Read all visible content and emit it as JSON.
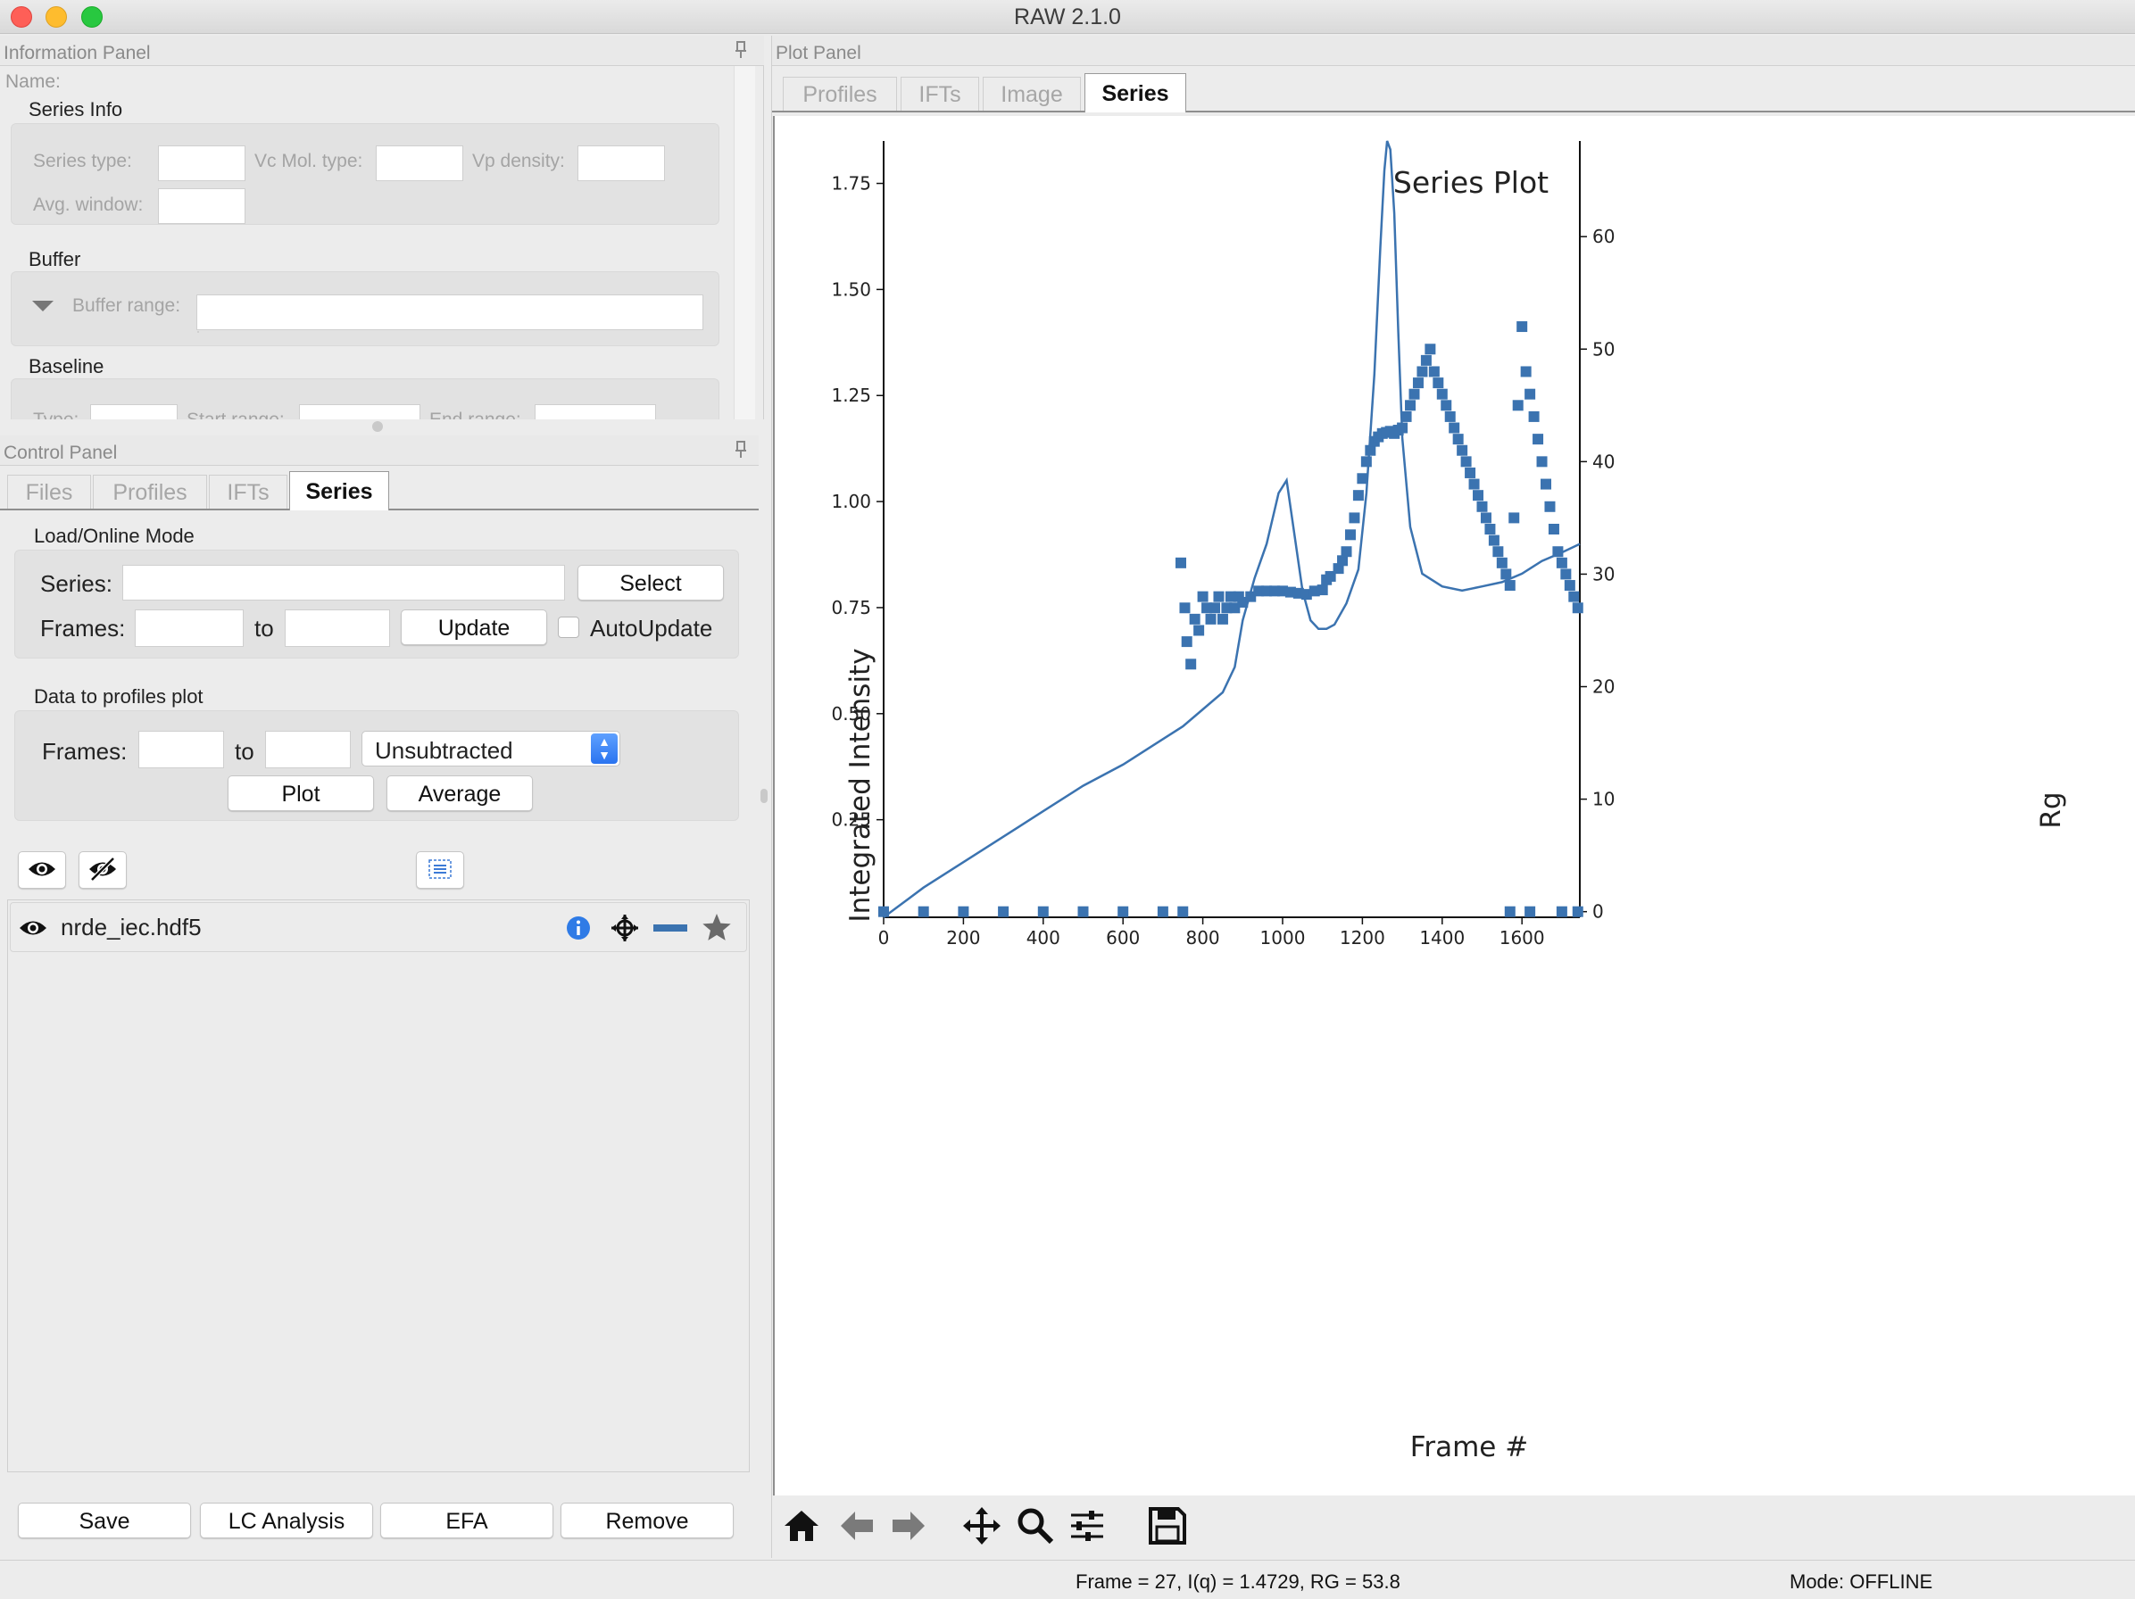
{
  "window": {
    "title": "RAW 2.1.0"
  },
  "info_panel": {
    "header": "Information Panel",
    "name_label": "Name:",
    "series_info": {
      "title": "Series Info",
      "series_type_label": "Series type:",
      "vc_mol_type_label": "Vc Mol. type:",
      "vp_density_label": "Vp density:",
      "avg_window_label": "Avg. window:"
    },
    "buffer": {
      "title": "Buffer",
      "range_label": "Buffer range:"
    },
    "baseline": {
      "title": "Baseline",
      "type_label": "Type:",
      "start_label": "Start range:",
      "end_label": "End range:"
    }
  },
  "control_panel": {
    "header": "Control Panel",
    "tabs": [
      "Files",
      "Profiles",
      "IFTs",
      "Series"
    ],
    "active_tab": "Series",
    "load_online": {
      "title": "Load/Online Mode",
      "series_label": "Series:",
      "select_button": "Select",
      "frames_label": "Frames:",
      "to_label": "to",
      "update_button": "Update",
      "autoupdate_label": "AutoUpdate"
    },
    "data_to_profiles": {
      "title": "Data to profiles plot",
      "frames_label": "Frames:",
      "to_label": "to",
      "mode_select": "Unsubtracted",
      "plot_button": "Plot",
      "average_button": "Average"
    },
    "series_list": [
      {
        "name": "nrde_iec.hdf5"
      }
    ],
    "bottom_buttons": {
      "save": "Save",
      "lc_analysis": "LC Analysis",
      "efa": "EFA",
      "remove": "Remove"
    }
  },
  "plot_panel": {
    "header": "Plot Panel",
    "tabs": [
      "Profiles",
      "IFTs",
      "Image",
      "Series"
    ],
    "active_tab": "Series"
  },
  "status": {
    "readout": "Frame = 27, I(q) = 1.4729, RG = 53.8",
    "mode": "Mode: OFFLINE"
  },
  "colors": {
    "series": "#3b73b0",
    "accent": "#2a74f0"
  },
  "chart_data": {
    "type": "line",
    "title": "Series Plot",
    "xlabel": "Frame #",
    "ylabel": "Integrated Intensity",
    "y2label": "Rg",
    "xlim": [
      0,
      1745
    ],
    "ylim": [
      0.02,
      1.85
    ],
    "y2lim": [
      -0.5,
      68.5
    ],
    "xticks": [
      0,
      200,
      400,
      600,
      800,
      1000,
      1200,
      1400,
      1600
    ],
    "yticks": [
      0.25,
      0.5,
      0.75,
      1.0,
      1.25,
      1.5,
      1.75
    ],
    "yticklabels": [
      "0.25",
      "0.50",
      "0.75",
      "1.00",
      "1.25",
      "1.50",
      "1.75"
    ],
    "y2ticks": [
      0,
      10,
      20,
      30,
      40,
      50,
      60
    ],
    "grid": false,
    "series": [
      {
        "kind": "line",
        "axis": "left",
        "x": [
          0,
          100,
          200,
          300,
          400,
          500,
          600,
          700,
          750,
          800,
          850,
          880,
          900,
          930,
          960,
          990,
          1010,
          1030,
          1050,
          1070,
          1090,
          1110,
          1130,
          1160,
          1190,
          1210,
          1230,
          1245,
          1255,
          1262,
          1270,
          1280,
          1290,
          1300,
          1320,
          1350,
          1400,
          1450,
          1500,
          1550,
          1600,
          1650,
          1700,
          1745
        ],
        "y": [
          0.02,
          0.09,
          0.15,
          0.21,
          0.27,
          0.33,
          0.38,
          0.44,
          0.47,
          0.51,
          0.55,
          0.61,
          0.72,
          0.82,
          0.9,
          1.02,
          1.05,
          0.92,
          0.79,
          0.72,
          0.7,
          0.7,
          0.71,
          0.76,
          0.84,
          1.02,
          1.3,
          1.6,
          1.78,
          1.85,
          1.83,
          1.68,
          1.4,
          1.15,
          0.94,
          0.83,
          0.8,
          0.79,
          0.8,
          0.81,
          0.83,
          0.86,
          0.88,
          0.9
        ]
      },
      {
        "kind": "scatter",
        "axis": "right",
        "x": [
          0,
          100,
          200,
          300,
          400,
          500,
          600,
          700,
          750,
          1570,
          1620,
          1700,
          1740,
          745,
          755,
          760,
          770,
          780,
          790,
          800,
          810,
          820,
          830,
          840,
          850,
          860,
          870,
          880,
          890,
          900,
          920,
          940,
          960,
          980,
          1000,
          1020,
          1040,
          1060,
          1080,
          1100,
          1110,
          1120,
          1140,
          1150,
          1160,
          1170,
          1180,
          1190,
          1200,
          1210,
          1220,
          1230,
          1240,
          1250,
          1260,
          1270,
          1280,
          1290,
          1300,
          1310,
          1320,
          1330,
          1340,
          1350,
          1360,
          1370,
          1380,
          1390,
          1400,
          1410,
          1420,
          1430,
          1440,
          1450,
          1460,
          1470,
          1480,
          1490,
          1500,
          1510,
          1520,
          1530,
          1540,
          1550,
          1560,
          1570,
          1580,
          1590,
          1600,
          1610,
          1620,
          1630,
          1640,
          1650,
          1660,
          1670,
          1680,
          1690,
          1700,
          1710,
          1720,
          1730,
          1740
        ],
        "y": [
          0,
          0,
          0,
          0,
          0,
          0,
          0,
          0,
          0,
          0,
          0,
          0,
          0,
          31,
          27,
          24,
          22,
          26,
          25,
          28,
          27,
          26,
          27,
          28,
          26,
          27,
          28,
          27,
          28,
          27.5,
          28,
          28.5,
          28.5,
          28.5,
          28.5,
          28.4,
          28.3,
          28.2,
          28.5,
          28.6,
          29.5,
          29.8,
          30.5,
          31.2,
          32,
          33.5,
          35,
          37,
          38.5,
          40,
          41,
          41.8,
          42.2,
          42.5,
          42.6,
          42.7,
          42.5,
          42.8,
          43,
          44,
          45,
          46,
          47,
          48,
          49,
          50,
          48,
          47,
          46,
          45,
          44,
          43,
          42,
          41,
          40,
          39,
          38,
          37,
          36,
          35,
          34,
          33,
          32,
          31,
          30,
          29,
          35,
          45,
          52,
          48,
          46,
          44,
          42,
          40,
          38,
          36,
          34,
          32,
          31,
          30,
          29,
          28,
          27
        ]
      }
    ]
  }
}
